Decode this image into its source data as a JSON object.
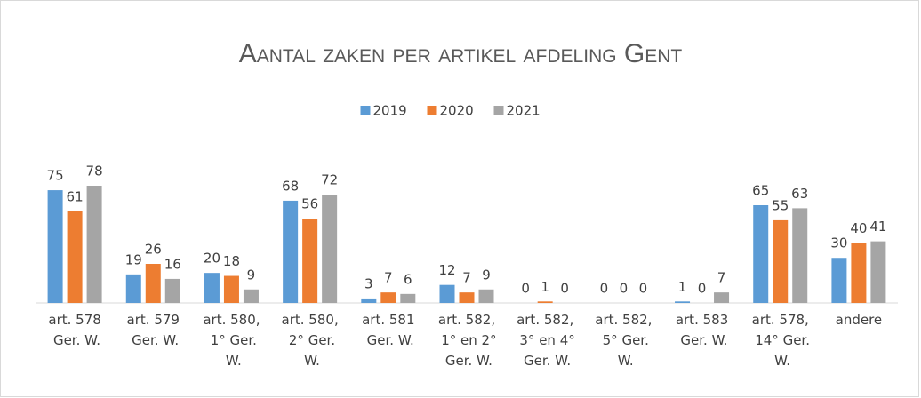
{
  "chart_data": {
    "type": "bar",
    "title": "Aantal zaken per artikel afdeling Gent",
    "categories": [
      "art. 578 Ger. W.",
      "art. 579 Ger. W.",
      "art. 580, 1° Ger. W.",
      "art. 580, 2° Ger. W.",
      "art. 581 Ger. W.",
      "art. 582, 1° en 2° Ger. W.",
      "art. 582, 3° en 4° Ger. W.",
      "art. 582, 5° Ger. W.",
      "art. 583 Ger. W.",
      "art. 578, 14° Ger. W.",
      "andere"
    ],
    "series": [
      {
        "name": "2019",
        "color": "#5b9bd5",
        "values": [
          75,
          19,
          20,
          68,
          3,
          12,
          0,
          0,
          1,
          65,
          30
        ]
      },
      {
        "name": "2020",
        "color": "#ed7d31",
        "values": [
          61,
          26,
          18,
          56,
          7,
          7,
          1,
          0,
          0,
          55,
          40
        ]
      },
      {
        "name": "2021",
        "color": "#a5a5a5",
        "values": [
          78,
          16,
          9,
          72,
          6,
          9,
          0,
          0,
          7,
          63,
          41
        ]
      }
    ],
    "legend": "top"
  }
}
